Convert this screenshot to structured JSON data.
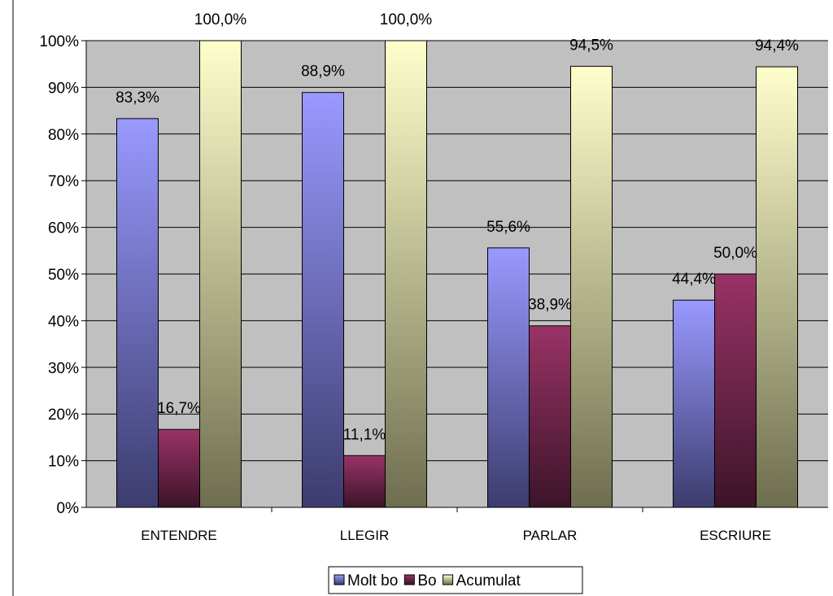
{
  "chart_data": {
    "type": "bar",
    "categories": [
      "ENTENDRE",
      "LLEGIR",
      "PARLAR",
      "ESCRIURE"
    ],
    "series": [
      {
        "name": "Molt bo",
        "values": [
          83.3,
          88.9,
          55.6,
          44.4
        ],
        "labels": [
          "83,3%",
          "88,9%",
          "55,6%",
          "44,4%"
        ],
        "color_top": "#9999ff",
        "color_bottom": "#3c3c6e"
      },
      {
        "name": "Bo",
        "values": [
          16.7,
          11.1,
          38.9,
          50.0
        ],
        "labels": [
          "16,7%",
          "11,1%",
          "38,9%",
          "50,0%"
        ],
        "color_top": "#993366",
        "color_bottom": "#3c1428"
      },
      {
        "name": "Acumulat",
        "values": [
          100.0,
          100.0,
          94.5,
          94.4
        ],
        "labels": [
          "100,0%",
          "100,0%",
          "94,5%",
          "94,4%"
        ],
        "color_top": "#ffffcc",
        "color_bottom": "#6e6e50"
      }
    ],
    "y_ticks": [
      "0%",
      "10%",
      "20%",
      "30%",
      "40%",
      "50%",
      "60%",
      "70%",
      "80%",
      "90%",
      "100%"
    ],
    "ylim": [
      0,
      100
    ],
    "title": "",
    "xlabel": "",
    "ylabel": "",
    "grid": true,
    "plot_background": "#c0c0c0",
    "legend_position": "bottom"
  }
}
